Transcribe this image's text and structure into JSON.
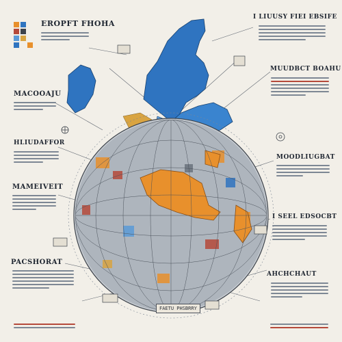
{
  "headings": {
    "top_left": "EROPFT FHOHA",
    "top_right": "I LIUUSY FIEI EBSIFE",
    "mid_right_1": "MUUDBCT BOAHU",
    "left_1": "MACOOAJU",
    "left_2": "HLIUDAFFOR",
    "mid_right_2": "MOODLIUGBAT",
    "left_3": "MAMEIVEIT",
    "right_3": "I SEEL EDSOCBT",
    "left_4": "PACSHORAT",
    "right_4": "AHCHCHAUT",
    "bottom_caption": "FAETU PHSBRRY"
  },
  "colors": {
    "background": "#f2efe8",
    "europe_blue": "#2f74c0",
    "globe_grey": "#9aa3ad",
    "accent_orange": "#e8902c",
    "accent_red": "#b5493a",
    "text_dark": "#1e2530"
  },
  "icons": [
    "legend-swatch-icon",
    "globe-icon",
    "gear-icon",
    "compass-icon"
  ]
}
